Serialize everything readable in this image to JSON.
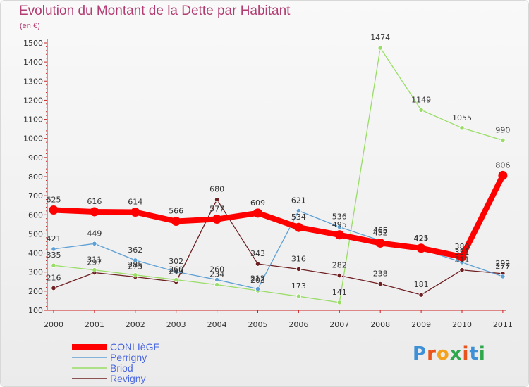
{
  "chart_data": {
    "type": "line",
    "title": "Evolution du Montant de la Dette par Habitant",
    "subtitle": "(en €)",
    "xlabel": "",
    "ylabel": "",
    "x": [
      "2000",
      "2001",
      "2002",
      "2003",
      "2004",
      "2005",
      "2006",
      "2007",
      "2008",
      "2009",
      "2010",
      "2011"
    ],
    "ylim": [
      100,
      1500
    ],
    "yticks": [
      100,
      200,
      300,
      400,
      500,
      600,
      700,
      800,
      900,
      1000,
      1100,
      1200,
      1300,
      1400,
      1500
    ],
    "grid": false,
    "legend_position": "bottom-left",
    "series": [
      {
        "name": "Revigny",
        "color": "#6e1f22",
        "values": [
          216,
          297,
          275,
          249,
          680,
          343,
          316,
          282,
          238,
          181,
          311,
          292
        ]
      },
      {
        "name": "Briod",
        "color": "#99dd66",
        "values": [
          335,
          311,
          285,
          260,
          234,
          203,
          173,
          141,
          1474,
          1149,
          1055,
          990
        ]
      },
      {
        "name": "Perrigny",
        "color": "#5fa0d4",
        "values": [
          421,
          449,
          362,
          302,
          260,
          212,
          621,
          536,
          465,
          421,
          351,
          277
        ]
      },
      {
        "name": "CONLIèGE",
        "color": "#ff0000",
        "values": [
          625,
          616,
          614,
          566,
          577,
          609,
          534,
          495,
          452,
          425,
          380,
          806
        ]
      }
    ],
    "legend_order": [
      "CONLIèGE",
      "Perrigny",
      "Briod",
      "Revigny"
    ]
  },
  "logo": {
    "text": "Proxiti"
  }
}
